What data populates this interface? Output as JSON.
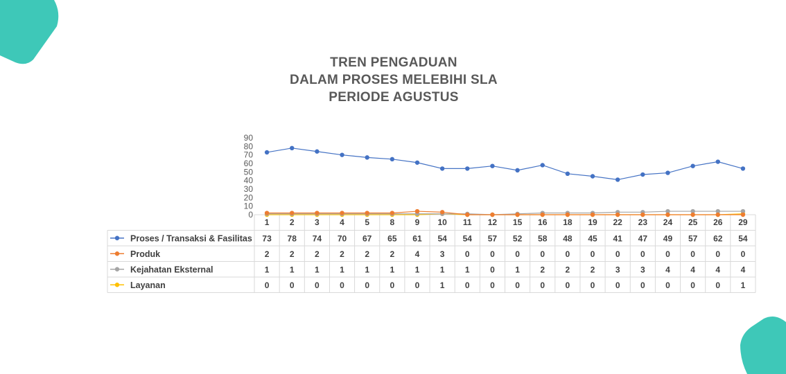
{
  "title_lines": [
    "TREN PENGADUAN",
    "DALAM PROSES MELEBIHI SLA",
    "PERIODE AGUSTUS"
  ],
  "colors": {
    "decor": "#3ec8b8",
    "title": "#595959",
    "grid_border": "#d9d9d9",
    "text": "#404040"
  },
  "chart_data": {
    "type": "line",
    "title": "TREN PENGADUAN DALAM PROSES MELEBIHI SLA PERIODE AGUSTUS",
    "x": [
      "1",
      "2",
      "3",
      "4",
      "5",
      "8",
      "9",
      "10",
      "11",
      "12",
      "15",
      "16",
      "18",
      "19",
      "22",
      "23",
      "24",
      "25",
      "26",
      "29"
    ],
    "ylim": [
      0,
      90
    ],
    "yticks": [
      0,
      10,
      20,
      30,
      40,
      50,
      60,
      70,
      80,
      90
    ],
    "grid": false,
    "legend": "data-table",
    "series": [
      {
        "name": "Proses / Transaksi & Fasilitas",
        "color": "#4472c4",
        "values": [
          73,
          78,
          74,
          70,
          67,
          65,
          61,
          54,
          54,
          57,
          52,
          58,
          48,
          45,
          41,
          47,
          49,
          57,
          62,
          54
        ]
      },
      {
        "name": "Produk",
        "color": "#ed7d31",
        "values": [
          2,
          2,
          2,
          2,
          2,
          2,
          4,
          3,
          0,
          0,
          0,
          0,
          0,
          0,
          0,
          0,
          0,
          0,
          0,
          0
        ]
      },
      {
        "name": "Kejahatan Eksternal",
        "color": "#a5a5a5",
        "values": [
          1,
          1,
          1,
          1,
          1,
          1,
          1,
          1,
          1,
          0,
          1,
          2,
          2,
          2,
          3,
          3,
          4,
          4,
          4,
          4
        ]
      },
      {
        "name": "Layanan",
        "color": "#ffc000",
        "values": [
          0,
          0,
          0,
          0,
          0,
          0,
          0,
          1,
          0,
          0,
          0,
          0,
          0,
          0,
          0,
          0,
          0,
          0,
          0,
          1
        ]
      }
    ]
  }
}
